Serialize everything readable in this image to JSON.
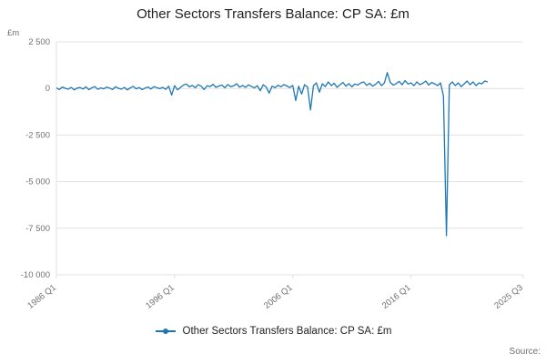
{
  "title": "Other Sectors Transfers Balance: CP SA: £m",
  "y_axis_unit_label": "£m",
  "source_label": "Source:",
  "legend": {
    "label": "Other Sectors Transfers Balance: CP SA: £m"
  },
  "colors": {
    "line": "#1f77b4",
    "grid": "#e0e0e0",
    "tick_text": "#707070",
    "title_text": "#222222"
  },
  "chart_data": {
    "type": "line",
    "title": "Other Sectors Transfers Balance: CP SA: £m",
    "xlabel": "",
    "ylabel": "£m",
    "ylim": [
      -10000,
      2500
    ],
    "xlim": [
      1986.0,
      2025.5
    ],
    "y_ticks": [
      2500,
      0,
      -2500,
      -5000,
      -7500,
      -10000
    ],
    "y_tick_labels": [
      "2 500",
      "0",
      "-2 500",
      "-5 000",
      "-7 500",
      "-10 000"
    ],
    "x_ticks": [
      1986.0,
      1996.0,
      2006.0,
      2016.0,
      2025.5
    ],
    "x_tick_labels": [
      "1986 Q1",
      "1996 Q1",
      "2006 Q1",
      "2016 Q1",
      "2025 Q3"
    ],
    "grid": "horizontal",
    "legend_position": "bottom",
    "series": [
      {
        "name": "Other Sectors Transfers Balance: CP SA: £m",
        "start": 1986.0,
        "step": 0.25,
        "values": [
          30,
          -60,
          80,
          10,
          -40,
          60,
          -80,
          20,
          50,
          -30,
          90,
          -70,
          40,
          100,
          -50,
          30,
          -20,
          70,
          20,
          -60,
          90,
          10,
          -40,
          60,
          -80,
          30,
          110,
          -20,
          50,
          -60,
          20,
          80,
          -30,
          100,
          40,
          -10,
          60,
          -50,
          120,
          -350,
          150,
          -80,
          60,
          180,
          240,
          90,
          160,
          40,
          200,
          120,
          -60,
          150,
          100,
          220,
          60,
          130,
          180,
          40,
          210,
          90,
          140,
          250,
          70,
          160,
          60,
          190,
          110,
          30,
          150,
          -120,
          200,
          80,
          -250,
          120,
          40,
          170,
          90,
          210,
          130,
          50,
          160,
          -650,
          120,
          -300,
          200,
          80,
          -1150,
          150,
          300,
          -200,
          250,
          100,
          350,
          150,
          280,
          60,
          200,
          320,
          120,
          260,
          90,
          240,
          180,
          300,
          350,
          160,
          280,
          120,
          220,
          380,
          150,
          300,
          850,
          320,
          180,
          260,
          380,
          200,
          420,
          240,
          300,
          150,
          350,
          200,
          280,
          400,
          180,
          320,
          250,
          150,
          300,
          -400,
          -7900,
          200,
          350,
          150,
          300,
          100,
          250,
          400,
          200,
          350,
          150,
          300,
          250,
          400,
          350
        ]
      }
    ]
  }
}
